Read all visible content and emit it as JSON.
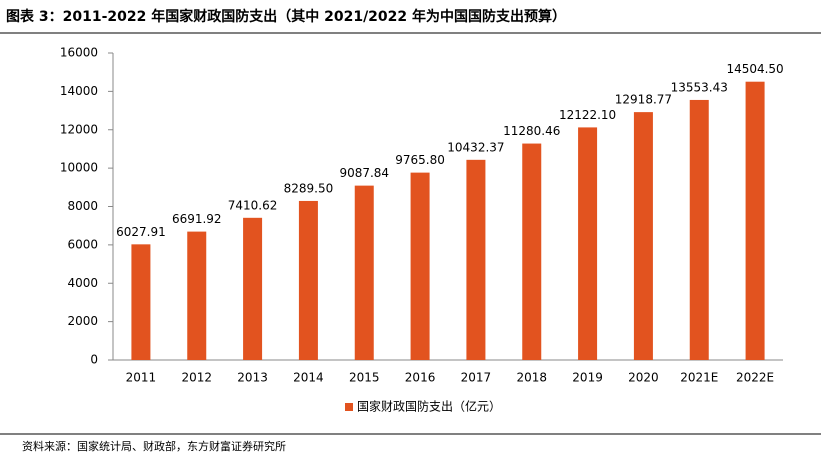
{
  "chart_data": {
    "type": "bar",
    "title": "图表 3：2011-2022 年国家财政国防支出（其中 2021/2022 年为中国国防支出预算）",
    "source": "资料来源：国家统计局、财政部，东方财富证券研究所",
    "categories": [
      "2011",
      "2012",
      "2013",
      "2014",
      "2015",
      "2016",
      "2017",
      "2018",
      "2019",
      "2020",
      "2021E",
      "2022E"
    ],
    "series": [
      {
        "name": "国家财政国防支出（亿元）",
        "color": "#e2531f",
        "values": [
          6027.91,
          6691.92,
          7410.62,
          8289.5,
          9087.84,
          9765.8,
          10432.37,
          11280.46,
          12122.1,
          12918.77,
          13553.43,
          14504.5
        ],
        "value_labels": [
          "6027.91",
          "6691.92",
          "7410.62",
          "8289.50",
          "9087.84",
          "9765.80",
          "10432.37",
          "11280.46",
          "12122.10",
          "12918.77",
          "13553.43",
          "14504.50"
        ]
      }
    ],
    "ylim": [
      0,
      16000
    ],
    "yticks": [
      0,
      2000,
      4000,
      6000,
      8000,
      10000,
      12000,
      14000,
      16000
    ],
    "grid": false,
    "legend": "bottom"
  }
}
